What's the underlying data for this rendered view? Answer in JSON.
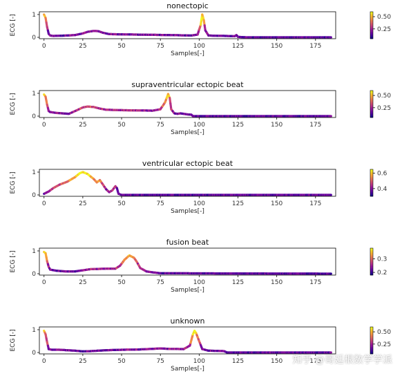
{
  "watermark": "知乎 @哥廷根数学学派",
  "colormap": [
    "#0d0887",
    "#5b02a3",
    "#9a179b",
    "#cb4678",
    "#eb7852",
    "#fbb32f",
    "#f0f921"
  ],
  "chart_data": [
    {
      "type": "line",
      "title": "nonectopic",
      "xlabel": "Samples[-]",
      "ylabel": "ECG [-]",
      "xlim": [
        -3,
        188
      ],
      "ylim": [
        0,
        1
      ],
      "xticks": [
        0,
        25,
        50,
        75,
        100,
        125,
        150,
        175
      ],
      "yticks": [
        0,
        1
      ],
      "colorbar": {
        "range": [
          0.05,
          0.6
        ],
        "ticks": [
          0.25,
          0.5
        ],
        "tick_labels": [
          "0.25",
          "0.50"
        ]
      },
      "points": [
        [
          0,
          1.0
        ],
        [
          1,
          0.85
        ],
        [
          2,
          0.45
        ],
        [
          3,
          0.15
        ],
        [
          4,
          0.08
        ],
        [
          6,
          0.06
        ],
        [
          10,
          0.07
        ],
        [
          15,
          0.08
        ],
        [
          20,
          0.1
        ],
        [
          25,
          0.17
        ],
        [
          28,
          0.24
        ],
        [
          32,
          0.28
        ],
        [
          35,
          0.27
        ],
        [
          38,
          0.2
        ],
        [
          42,
          0.14
        ],
        [
          50,
          0.13
        ],
        [
          60,
          0.12
        ],
        [
          70,
          0.11
        ],
        [
          80,
          0.1
        ],
        [
          88,
          0.09
        ],
        [
          95,
          0.08
        ],
        [
          99,
          0.12
        ],
        [
          101,
          0.55
        ],
        [
          102,
          1.0
        ],
        [
          103,
          0.75
        ],
        [
          104,
          0.3
        ],
        [
          106,
          0.08
        ],
        [
          110,
          0.07
        ],
        [
          118,
          0.06
        ],
        [
          123,
          0.05
        ],
        [
          124,
          0.1
        ],
        [
          125,
          0.02
        ],
        [
          130,
          0.0
        ],
        [
          185,
          0.0
        ]
      ]
    },
    {
      "type": "line",
      "title": "supraventricular ectopic beat",
      "xlabel": "Samples[-]",
      "ylabel": "ECG [-]",
      "xlim": [
        -3,
        188
      ],
      "ylim": [
        0,
        1
      ],
      "xticks": [
        0,
        25,
        50,
        75,
        100,
        125,
        150,
        175
      ],
      "yticks": [
        0,
        1
      ],
      "colorbar": {
        "range": [
          0.05,
          0.6
        ],
        "ticks": [
          0.25,
          0.5
        ],
        "tick_labels": [
          "0.25",
          "0.50"
        ]
      },
      "points": [
        [
          0,
          0.95
        ],
        [
          1,
          0.85
        ],
        [
          2,
          0.5
        ],
        [
          3,
          0.22
        ],
        [
          4,
          0.18
        ],
        [
          8,
          0.14
        ],
        [
          12,
          0.12
        ],
        [
          16,
          0.1
        ],
        [
          20,
          0.22
        ],
        [
          25,
          0.38
        ],
        [
          28,
          0.42
        ],
        [
          32,
          0.4
        ],
        [
          36,
          0.33
        ],
        [
          40,
          0.28
        ],
        [
          50,
          0.26
        ],
        [
          60,
          0.25
        ],
        [
          70,
          0.24
        ],
        [
          75,
          0.3
        ],
        [
          78,
          0.6
        ],
        [
          80,
          0.97
        ],
        [
          81,
          0.8
        ],
        [
          82,
          0.3
        ],
        [
          84,
          0.12
        ],
        [
          86,
          0.1
        ],
        [
          88,
          0.12
        ],
        [
          92,
          0.08
        ],
        [
          95,
          0.06
        ],
        [
          96,
          0.0
        ],
        [
          185,
          0.0
        ]
      ]
    },
    {
      "type": "line",
      "title": "ventricular ectopic beat",
      "xlabel": "Samples[-]",
      "ylabel": "ECG [-]",
      "xlim": [
        -3,
        188
      ],
      "ylim": [
        0,
        1
      ],
      "xticks": [
        0,
        25,
        50,
        75,
        100,
        125,
        150,
        175
      ],
      "yticks": [
        0,
        1
      ],
      "colorbar": {
        "range": [
          0.3,
          0.65
        ],
        "ticks": [
          0.4,
          0.6
        ],
        "tick_labels": [
          "0.4",
          "0.6"
        ]
      },
      "points": [
        [
          0,
          0.05
        ],
        [
          3,
          0.15
        ],
        [
          6,
          0.3
        ],
        [
          10,
          0.45
        ],
        [
          15,
          0.58
        ],
        [
          20,
          0.78
        ],
        [
          23,
          0.95
        ],
        [
          25,
          1.0
        ],
        [
          28,
          0.92
        ],
        [
          32,
          0.7
        ],
        [
          34,
          0.55
        ],
        [
          36,
          0.65
        ],
        [
          38,
          0.45
        ],
        [
          40,
          0.25
        ],
        [
          42,
          0.12
        ],
        [
          44,
          0.2
        ],
        [
          46,
          0.38
        ],
        [
          47,
          0.3
        ],
        [
          48,
          0.05
        ],
        [
          50,
          0.0
        ],
        [
          185,
          0.0
        ]
      ]
    },
    {
      "type": "line",
      "title": "fusion beat",
      "xlabel": "Samples[-]",
      "ylabel": "ECG [-]",
      "xlim": [
        -3,
        188
      ],
      "ylim": [
        0,
        1
      ],
      "xticks": [
        0,
        25,
        50,
        75,
        100,
        125,
        150,
        175
      ],
      "yticks": [
        0,
        1
      ],
      "colorbar": {
        "range": [
          0.18,
          0.38
        ],
        "ticks": [
          0.2,
          0.3
        ],
        "tick_labels": [
          "0.2",
          "0.3"
        ]
      },
      "points": [
        [
          0,
          0.95
        ],
        [
          1,
          0.9
        ],
        [
          2,
          0.55
        ],
        [
          3,
          0.3
        ],
        [
          4,
          0.18
        ],
        [
          8,
          0.13
        ],
        [
          14,
          0.1
        ],
        [
          20,
          0.1
        ],
        [
          25,
          0.15
        ],
        [
          30,
          0.2
        ],
        [
          40,
          0.22
        ],
        [
          46,
          0.22
        ],
        [
          49,
          0.35
        ],
        [
          52,
          0.62
        ],
        [
          55,
          0.8
        ],
        [
          58,
          0.7
        ],
        [
          60,
          0.5
        ],
        [
          62,
          0.25
        ],
        [
          66,
          0.1
        ],
        [
          70,
          0.06
        ],
        [
          75,
          0.02
        ],
        [
          185,
          0.0
        ]
      ]
    },
    {
      "type": "line",
      "title": "unknown",
      "xlabel": "Samples[-]",
      "ylabel": "ECG [-]",
      "xlim": [
        -3,
        188
      ],
      "ylim": [
        0,
        1
      ],
      "xticks": [
        0,
        25,
        50,
        75,
        100,
        125,
        150,
        175
      ],
      "yticks": [
        0,
        1
      ],
      "colorbar": {
        "range": [
          0.05,
          0.6
        ],
        "ticks": [
          0.25,
          0.5
        ],
        "tick_labels": [
          "0.25",
          "0.50"
        ]
      },
      "points": [
        [
          0,
          0.95
        ],
        [
          1,
          0.8
        ],
        [
          2,
          0.45
        ],
        [
          3,
          0.15
        ],
        [
          5,
          0.12
        ],
        [
          10,
          0.12
        ],
        [
          20,
          0.08
        ],
        [
          25,
          0.05
        ],
        [
          30,
          0.06
        ],
        [
          40,
          0.1
        ],
        [
          50,
          0.12
        ],
        [
          60,
          0.13
        ],
        [
          70,
          0.16
        ],
        [
          75,
          0.18
        ],
        [
          80,
          0.16
        ],
        [
          90,
          0.15
        ],
        [
          94,
          0.3
        ],
        [
          96,
          0.8
        ],
        [
          97,
          0.95
        ],
        [
          98,
          0.85
        ],
        [
          100,
          0.5
        ],
        [
          102,
          0.15
        ],
        [
          106,
          0.08
        ],
        [
          112,
          0.07
        ],
        [
          116,
          0.06
        ],
        [
          118,
          0.0
        ],
        [
          185,
          0.0
        ]
      ]
    }
  ]
}
